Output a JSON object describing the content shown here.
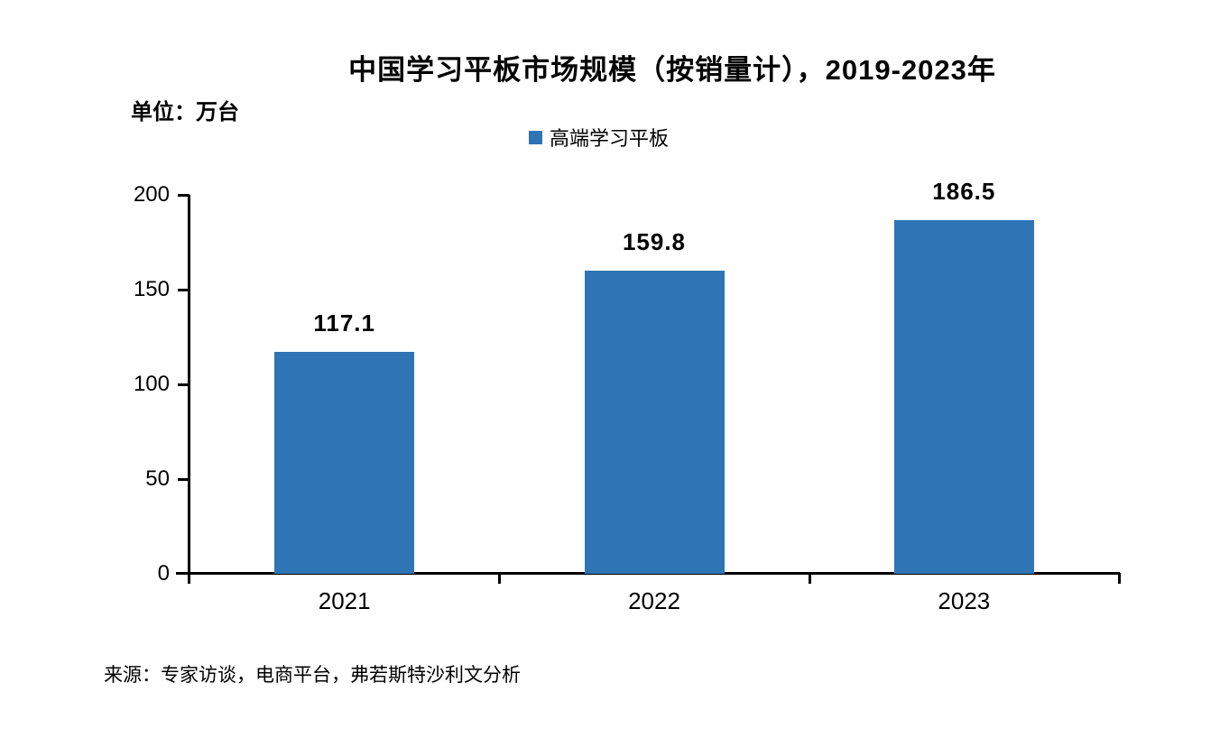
{
  "chart_data": {
    "type": "bar",
    "title": "中国学习平板市场规模（按销量计），2019-2023年",
    "unit_label": "单位：万台",
    "legend": [
      {
        "label": "高端学习平板",
        "color": "#2E75B6"
      }
    ],
    "legend_position": "top-center",
    "categories": [
      "2021",
      "2022",
      "2023"
    ],
    "series": [
      {
        "name": "高端学习平板",
        "color": "#2E75B6",
        "values": [
          117.1,
          159.8,
          186.5
        ]
      }
    ],
    "value_labels": [
      "117.1",
      "159.8",
      "186.5"
    ],
    "xlabel": "",
    "ylabel": "",
    "ylim": [
      0,
      200
    ],
    "yticks": [
      0,
      50,
      100,
      150,
      200
    ],
    "grid": false,
    "source": "来源：专家访谈，电商平台，弗若斯特沙利文分析"
  },
  "colors": {
    "bar": "#2E75B6",
    "axis": "#000000",
    "text": "#000000",
    "background": "#FFFFFF"
  }
}
